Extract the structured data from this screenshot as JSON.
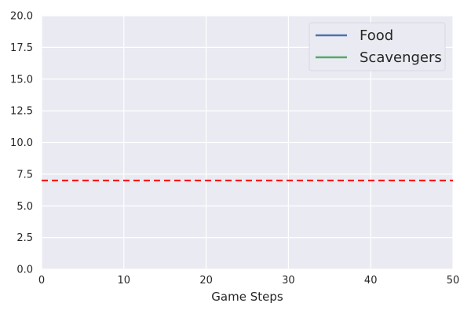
{
  "chart_data": {
    "type": "line",
    "xlabel": "Game Steps",
    "ylabel": "",
    "xlim": [
      0,
      50
    ],
    "ylim": [
      0,
      20
    ],
    "xticks": [
      0,
      10,
      20,
      30,
      40,
      50
    ],
    "xtick_labels": [
      "0",
      "10",
      "20",
      "30",
      "40",
      "50"
    ],
    "yticks": [
      0,
      2.5,
      5,
      7.5,
      10,
      12.5,
      15,
      17.5,
      20
    ],
    "ytick_labels": [
      "0.0",
      "2.5",
      "5.0",
      "7.5",
      "10.0",
      "12.5",
      "15.0",
      "17.5",
      "20.0"
    ],
    "grid": true,
    "legend_position": "top-right",
    "series": [
      {
        "name": "Food",
        "color": "#4c72b0",
        "x": [],
        "y": []
      },
      {
        "name": "Scavengers",
        "color": "#55a868",
        "x": [],
        "y": []
      }
    ],
    "reference_lines": [
      {
        "orientation": "horizontal",
        "y": 7,
        "color": "#ff0000",
        "style": "dashed"
      }
    ],
    "colors": {
      "plot_background": "#eaeaf2",
      "grid": "#ffffff"
    }
  }
}
